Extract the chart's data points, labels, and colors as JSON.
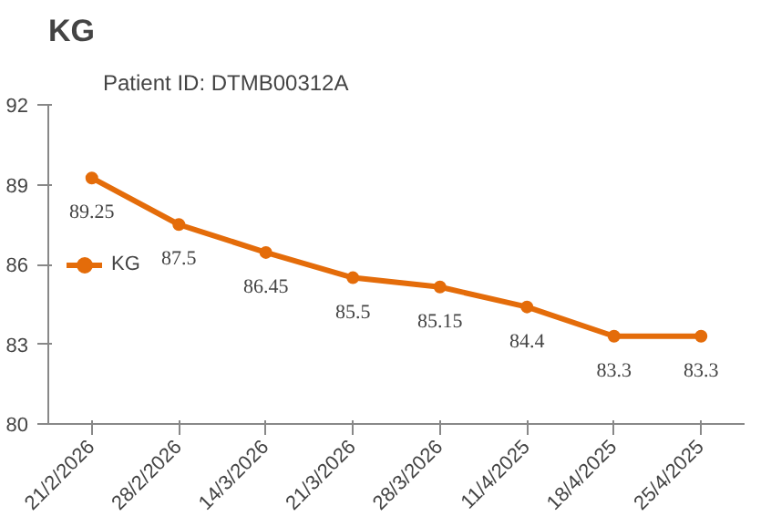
{
  "chart_data": {
    "type": "line",
    "title": "KG",
    "subtitle": "Patient ID: DTMB00312A",
    "categories": [
      "21/2/2026",
      "28/2/2026",
      "14/3/2026",
      "21/3/2026",
      "28/3/2026",
      "11/4/2025",
      "18/4/2025",
      "25/4/2025"
    ],
    "series": [
      {
        "name": "KG",
        "color": "#e46c0a",
        "values": [
          89.25,
          87.5,
          86.45,
          85.5,
          85.15,
          84.4,
          83.3,
          83.3
        ]
      }
    ],
    "ylim": [
      80,
      92
    ],
    "yticks": [
      80,
      83,
      86,
      89,
      92
    ],
    "grid": false,
    "legend": "left",
    "marker": "circle",
    "line_style": "solid",
    "data_labels": true
  }
}
